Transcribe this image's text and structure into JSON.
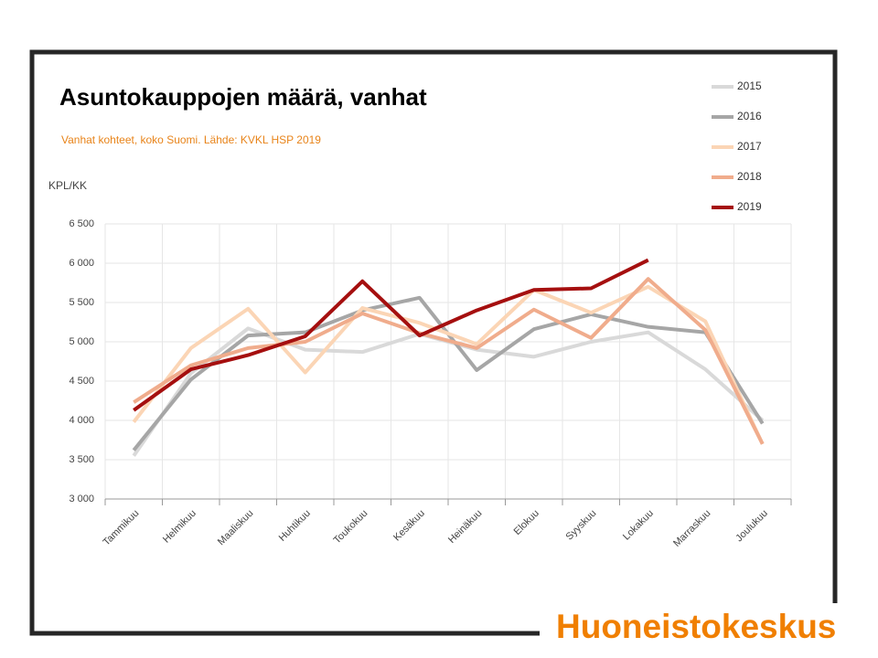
{
  "chart_data": {
    "type": "line",
    "title": "Asuntokauppojen määrä, vanhat",
    "subtitle": "Vanhat kohteet, koko Suomi. Lähde: KVKL HSP 2019",
    "y_label": "KPL/KK",
    "categories": [
      "Tammikuu",
      "Helmikuu",
      "Maaliskuu",
      "Huhtikuu",
      "Toukokuu",
      "Kesäkuu",
      "Heinäkuu",
      "Elokuu",
      "Syyskuu",
      "Lokakuu",
      "Marraskuu",
      "Joulukuu"
    ],
    "series": [
      {
        "name": "2015",
        "color": "#d9d9d9",
        "values": [
          3550,
          4600,
          5170,
          4900,
          4870,
          5100,
          4900,
          4810,
          5000,
          5120,
          4650,
          4000
        ]
      },
      {
        "name": "2016",
        "color": "#a6a6a6",
        "values": [
          3620,
          4520,
          5080,
          5120,
          5400,
          5560,
          4640,
          5160,
          5350,
          5190,
          5120,
          3960
        ]
      },
      {
        "name": "2017",
        "color": "#fbd5b5",
        "values": [
          3980,
          4920,
          5420,
          4610,
          5430,
          5240,
          4970,
          5660,
          5370,
          5700,
          5260,
          3700
        ]
      },
      {
        "name": "2018",
        "color": "#f0ac8c",
        "values": [
          4230,
          4700,
          4920,
          5000,
          5360,
          5110,
          4920,
          5410,
          5050,
          5800,
          5150,
          3700
        ]
      },
      {
        "name": "2019",
        "color": "#a50f0f",
        "values": [
          4130,
          4650,
          4830,
          5070,
          5770,
          5080,
          5400,
          5660,
          5680,
          6040,
          null,
          null
        ]
      }
    ],
    "ylim": [
      3000,
      6500
    ],
    "yticks": [
      {
        "value": 3000,
        "label": "3 000"
      },
      {
        "value": 3500,
        "label": "3 500"
      },
      {
        "value": 4000,
        "label": "4 000"
      },
      {
        "value": 4500,
        "label": "4 500"
      },
      {
        "value": 5000,
        "label": "5 000"
      },
      {
        "value": 5500,
        "label": "5 500"
      },
      {
        "value": 6000,
        "label": "6 000"
      },
      {
        "value": 6500,
        "label": "6 500"
      }
    ],
    "grid": true,
    "legend": "upper right"
  },
  "logo": "Huoneistokeskus"
}
